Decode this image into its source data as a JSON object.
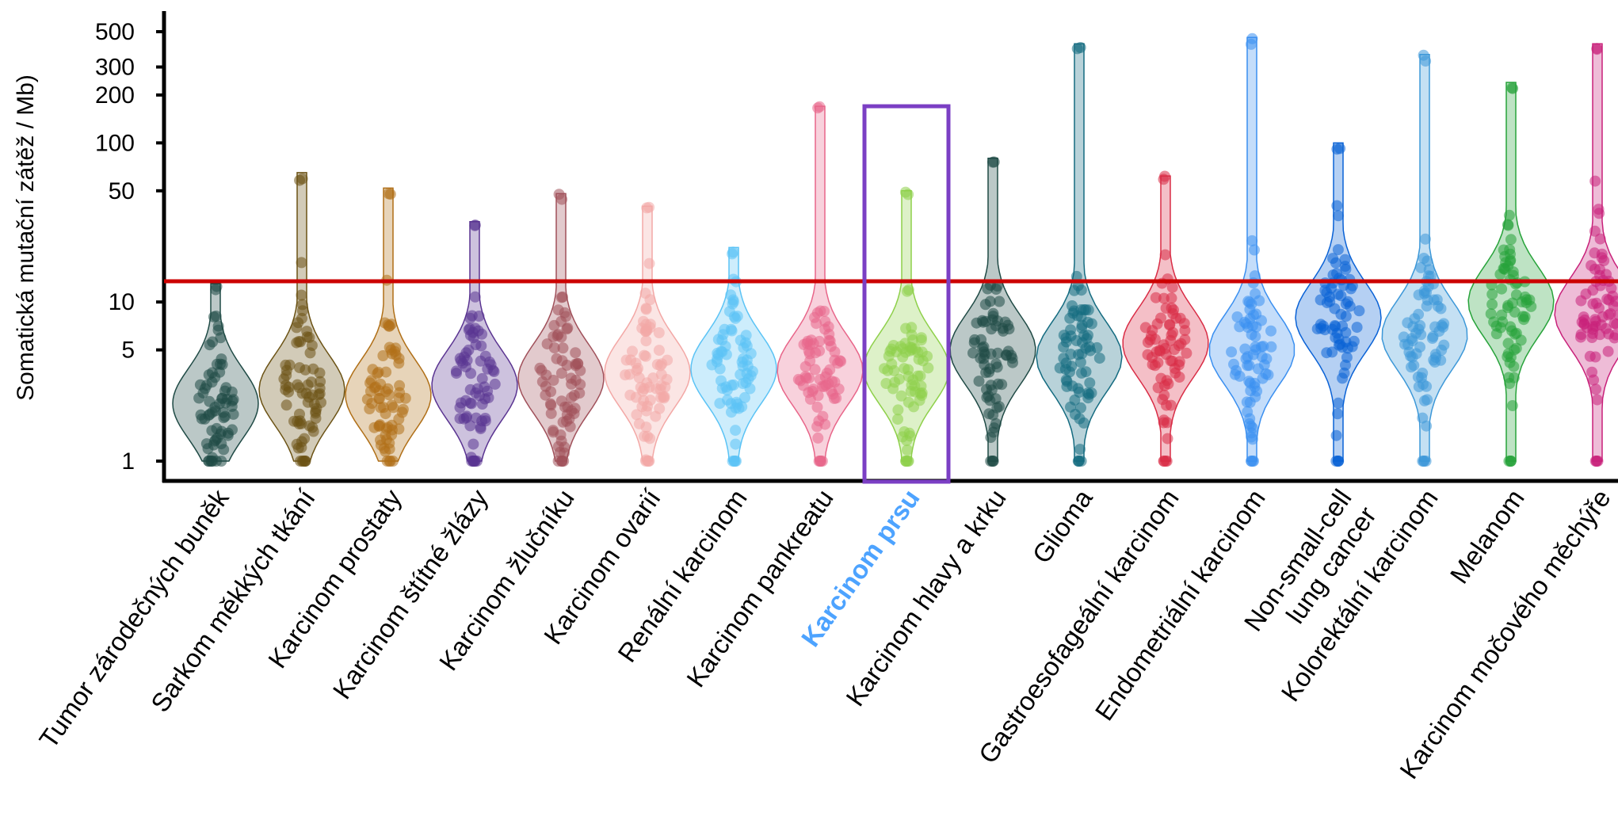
{
  "chart_data": {
    "type": "violin",
    "ylabel": "Somatická mutační zátěž / Mb)",
    "yscale": "log",
    "ylim": [
      0.87,
      800
    ],
    "yticks": [
      {
        "value": 1,
        "label": "1"
      },
      {
        "value": 5,
        "label": "5"
      },
      {
        "value": 10,
        "label": "10"
      },
      {
        "value": 50,
        "label": "50"
      },
      {
        "value": 100,
        "label": "100"
      },
      {
        "value": 200,
        "label": "200"
      },
      {
        "value": 300,
        "label": "300"
      },
      {
        "value": 500,
        "label": "500"
      }
    ],
    "reference_line": {
      "value": 13.5,
      "color": "#cc0000"
    },
    "highlight": {
      "category": "Karcinom prsu",
      "box_top": 170,
      "box_color": "#7b3fc4",
      "label_color": "#4da3ff"
    },
    "categories": [
      {
        "label": "Tumor zárodečných buněk",
        "color": "#1f4a45",
        "min": 1,
        "max": 13,
        "median": 2.3
      },
      {
        "label": "Sarkom měkkých tkání",
        "color": "#6b5214",
        "min": 1,
        "max": 65,
        "median": 2.8
      },
      {
        "label": "Karcinom prostaty",
        "color": "#b06f17",
        "min": 1,
        "max": 52,
        "median": 2.6
      },
      {
        "label": "Karcinom štítné žlázy",
        "color": "#5a3491",
        "min": 1,
        "max": 32,
        "median": 3.0
      },
      {
        "label": "Karcinom žlučníku",
        "color": "#a0505a",
        "min": 1,
        "max": 48,
        "median": 3.3
      },
      {
        "label": "Karcinom ovarií",
        "color": "#f3a8a6",
        "min": 1,
        "max": 40,
        "median": 3.6
      },
      {
        "label": "Renální karcinom",
        "color": "#5bc3f5",
        "min": 1,
        "max": 22,
        "median": 3.8
      },
      {
        "label": "Karcinom pankreatu",
        "color": "#e8668a",
        "min": 1,
        "max": 170,
        "median": 3.7
      },
      {
        "label": "Karcinom prsu",
        "color": "#8ed04a",
        "min": 1,
        "max": 50,
        "median": 3.8
      },
      {
        "label": "Karcinom hlavy a krku",
        "color": "#1f4a45",
        "min": 1,
        "max": 80,
        "median": 5.0
      },
      {
        "label": "Glioma",
        "color": "#146b80",
        "min": 1,
        "max": 420,
        "median": 4.5
      },
      {
        "label": "Gastroesofageální karcinom",
        "color": "#d92c45",
        "min": 1,
        "max": 62,
        "median": 5.5
      },
      {
        "label": "Endometriální karcinom",
        "color": "#3a8ff0",
        "min": 1,
        "max": 460,
        "median": 5.0
      },
      {
        "label": "Non-small-cell lung cancer",
        "color": "#0a62d6",
        "min": 1,
        "max": 100,
        "median": 8.0
      },
      {
        "label": "Kolorektální karcinom",
        "color": "#3d98d8",
        "min": 1,
        "max": 360,
        "median": 6.2
      },
      {
        "label": "Melanom",
        "color": "#27a33a",
        "min": 1,
        "max": 240,
        "median": 10.0
      },
      {
        "label": "Karcinom močového měchýře",
        "color": "#c8217a",
        "min": 1,
        "max": 420,
        "median": 8.5
      }
    ]
  }
}
